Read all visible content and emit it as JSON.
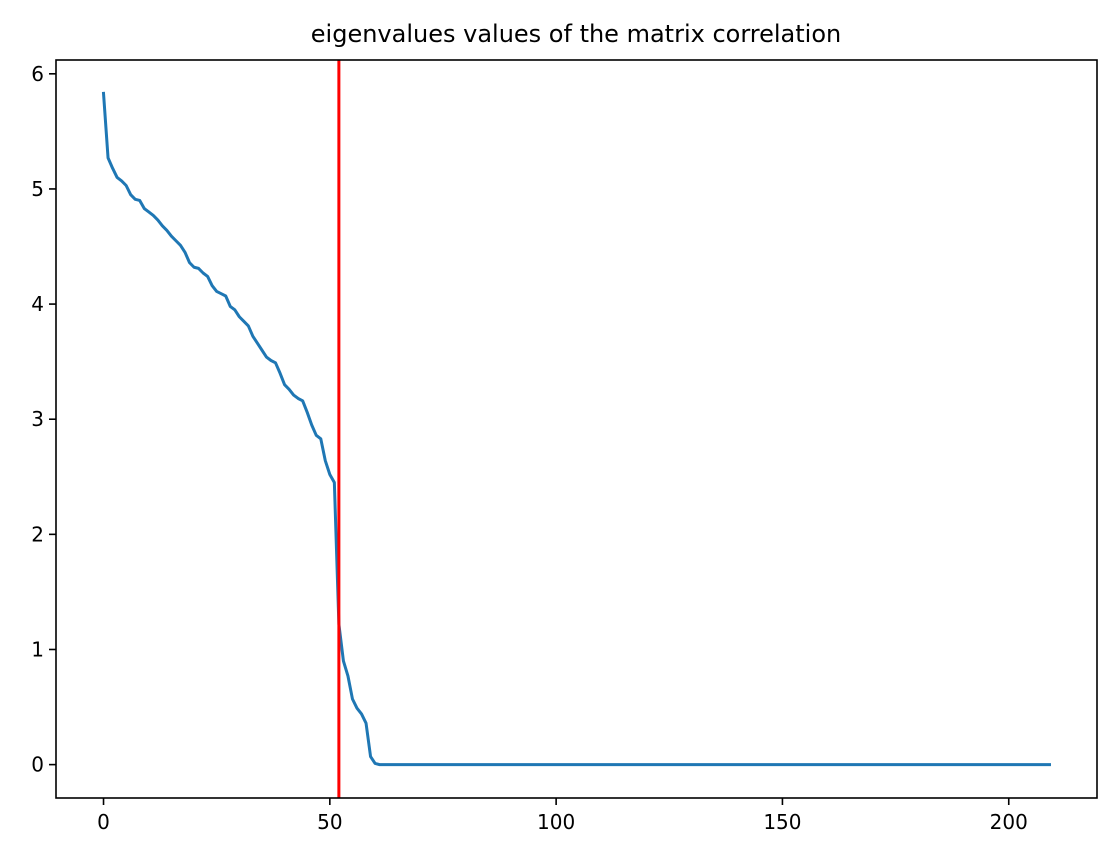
{
  "chart_data": {
    "type": "line",
    "title": "eigenvalues values of the matrix correlation",
    "xlabel": "",
    "ylabel": "",
    "xlim": [
      -10.5,
      219.5
    ],
    "ylim": [
      -0.29,
      6.12
    ],
    "xticks": [
      0,
      50,
      100,
      150,
      200
    ],
    "xtick_labels": [
      "0",
      "50",
      "100",
      "150",
      "200"
    ],
    "yticks": [
      0,
      1,
      2,
      3,
      4,
      5,
      6
    ],
    "ytick_labels": [
      "0",
      "1",
      "2",
      "3",
      "4",
      "5",
      "6"
    ],
    "grid": false,
    "legend": "none",
    "series": [
      {
        "color": "#1f77b4",
        "x": [
          0,
          1,
          2,
          3,
          4,
          5,
          6,
          7,
          8,
          9,
          10,
          11,
          12,
          13,
          14,
          15,
          16,
          17,
          18,
          19,
          20,
          21,
          22,
          23,
          24,
          25,
          26,
          27,
          28,
          29,
          30,
          31,
          32,
          33,
          34,
          35,
          36,
          37,
          38,
          39,
          40,
          41,
          42,
          43,
          44,
          45,
          46,
          47,
          48,
          49,
          50,
          51,
          52,
          53,
          54,
          55,
          56,
          57,
          58,
          59,
          60,
          61,
          209
        ],
        "values": [
          5.83,
          5.27,
          5.18,
          5.1,
          5.07,
          5.03,
          4.95,
          4.91,
          4.9,
          4.83,
          4.8,
          4.77,
          4.73,
          4.68,
          4.64,
          4.59,
          4.55,
          4.51,
          4.45,
          4.36,
          4.32,
          4.31,
          4.27,
          4.24,
          4.16,
          4.11,
          4.09,
          4.07,
          3.98,
          3.95,
          3.89,
          3.85,
          3.81,
          3.72,
          3.66,
          3.6,
          3.54,
          3.51,
          3.49,
          3.4,
          3.3,
          3.26,
          3.21,
          3.18,
          3.16,
          3.06,
          2.95,
          2.86,
          2.83,
          2.64,
          2.52,
          2.45,
          1.22,
          0.9,
          0.77,
          0.57,
          0.49,
          0.44,
          0.36,
          0.07,
          0.01,
          0.0,
          0.0
        ]
      }
    ],
    "vlines": [
      {
        "x": 52,
        "color": "#ff0000"
      }
    ]
  }
}
